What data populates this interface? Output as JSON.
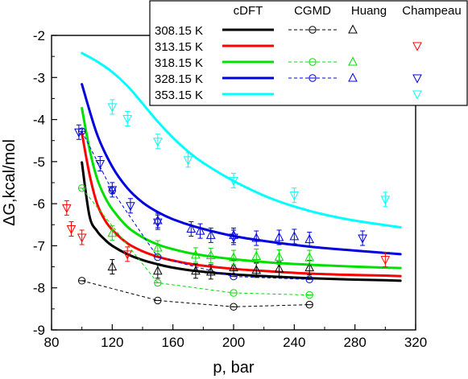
{
  "chart_data": {
    "type": "line",
    "xlabel": "p, bar",
    "ylabel": "ΔG,kcal/mol",
    "xlim": [
      80,
      320
    ],
    "ylim": [
      -9,
      -2
    ],
    "xticks": [
      80,
      120,
      160,
      200,
      240,
      280,
      320
    ],
    "yticks": [
      -9,
      -8,
      -7,
      -6,
      -5,
      -4,
      -3,
      -2
    ],
    "grid": false,
    "legend": {
      "placement": "top-right",
      "column_headers": [
        "cDFT",
        "CGMD",
        "Huang",
        "Champeau"
      ],
      "rows": [
        "308.15 K",
        "313.15 K",
        "318.15 K",
        "328.15 K",
        "353.15 K"
      ]
    },
    "temperatures": [
      {
        "label": "308.15 K",
        "color": "#000000"
      },
      {
        "label": "313.15 K",
        "color": "#ff0000"
      },
      {
        "label": "318.15 K",
        "color": "#00e000"
      },
      {
        "label": "328.15 K",
        "color": "#0000dd"
      },
      {
        "label": "353.15 K",
        "color": "#00ffff"
      }
    ],
    "cdft_series": [
      {
        "temperature": "308.15 K",
        "x": [
          100,
          105,
          110,
          115,
          120,
          130,
          140,
          150,
          160,
          175,
          200,
          225,
          250,
          275,
          300,
          310
        ],
        "y": [
          -5.02,
          -6.29,
          -6.65,
          -6.85,
          -7.0,
          -7.2,
          -7.34,
          -7.44,
          -7.52,
          -7.6,
          -7.68,
          -7.73,
          -7.77,
          -7.8,
          -7.82,
          -7.83
        ]
      },
      {
        "temperature": "313.15 K",
        "x": [
          100,
          105,
          110,
          115,
          120,
          130,
          140,
          150,
          160,
          175,
          200,
          225,
          250,
          275,
          300,
          310
        ],
        "y": [
          -4.32,
          -5.3,
          -6.0,
          -6.38,
          -6.62,
          -6.94,
          -7.13,
          -7.26,
          -7.35,
          -7.45,
          -7.55,
          -7.61,
          -7.66,
          -7.69,
          -7.71,
          -7.72
        ]
      },
      {
        "temperature": "318.15 K",
        "x": [
          100,
          105,
          110,
          115,
          120,
          130,
          140,
          150,
          160,
          175,
          200,
          225,
          250,
          275,
          300,
          310
        ],
        "y": [
          -3.73,
          -4.7,
          -5.4,
          -5.83,
          -6.13,
          -6.55,
          -6.8,
          -6.97,
          -7.08,
          -7.2,
          -7.32,
          -7.4,
          -7.45,
          -7.49,
          -7.52,
          -7.53
        ]
      },
      {
        "temperature": "328.15 K",
        "x": [
          100,
          110,
          120,
          130,
          140,
          150,
          160,
          175,
          200,
          225,
          250,
          275,
          300,
          310
        ],
        "y": [
          -3.16,
          -4.35,
          -5.12,
          -5.63,
          -5.97,
          -6.2,
          -6.37,
          -6.55,
          -6.77,
          -6.91,
          -7.02,
          -7.1,
          -7.17,
          -7.2
        ]
      },
      {
        "temperature": "353.15 K",
        "x": [
          100,
          110,
          120,
          130,
          140,
          150,
          160,
          170,
          180,
          200,
          225,
          250,
          275,
          300,
          310
        ],
        "y": [
          -2.42,
          -2.62,
          -2.87,
          -3.2,
          -3.62,
          -4.05,
          -4.43,
          -4.76,
          -5.03,
          -5.46,
          -5.88,
          -6.17,
          -6.37,
          -6.51,
          -6.56
        ]
      }
    ],
    "cgmd_series": [
      {
        "temperature": "308.15 K",
        "x": [
          100,
          150,
          200,
          250
        ],
        "y": [
          -7.83,
          -8.3,
          -8.45,
          -8.4
        ]
      },
      {
        "temperature": "318.15 K",
        "x": [
          100,
          150,
          200,
          250
        ],
        "y": [
          -5.63,
          -7.88,
          -8.12,
          -8.17
        ]
      },
      {
        "temperature": "328.15 K",
        "x": [
          100,
          120,
          150,
          200,
          250
        ],
        "y": [
          -4.28,
          -5.69,
          -7.27,
          -7.73,
          -7.8
        ]
      }
    ],
    "huang_series": [
      {
        "temperature": "308.15 K",
        "x": [
          120,
          150,
          175,
          185,
          200,
          215,
          230,
          250
        ],
        "y": [
          -7.5,
          -7.6,
          -7.6,
          -7.62,
          -7.52,
          -7.58,
          -7.55,
          -7.52
        ]
      },
      {
        "temperature": "318.15 K",
        "x": [
          120,
          150,
          175,
          185,
          200,
          215,
          230,
          250
        ],
        "y": [
          -6.7,
          -7.05,
          -7.22,
          -7.23,
          -7.28,
          -7.25,
          -7.27,
          -7.28
        ]
      },
      {
        "temperature": "328.15 K",
        "x": [
          150,
          172,
          178,
          185,
          200,
          215,
          230,
          240,
          250
        ],
        "y": [
          -6.4,
          -6.6,
          -6.65,
          -6.75,
          -6.75,
          -6.82,
          -6.8,
          -6.78,
          -6.85
        ]
      }
    ],
    "champeau_series": [
      {
        "temperature": "313.15 K",
        "x": [
          90,
          93,
          100,
          130,
          300
        ],
        "y": [
          -6.1,
          -6.6,
          -6.8,
          -7.2,
          -7.33
        ]
      },
      {
        "temperature": "328.15 K",
        "x": [
          98,
          112,
          120,
          132,
          150,
          200,
          285
        ],
        "y": [
          -4.3,
          -5.05,
          -5.67,
          -6.05,
          -6.44,
          -6.8,
          -6.82
        ]
      },
      {
        "temperature": "353.15 K",
        "x": [
          120,
          130,
          150,
          170,
          200,
          240,
          300
        ],
        "y": [
          -3.7,
          -3.98,
          -4.52,
          -4.96,
          -5.45,
          -5.8,
          -5.9
        ]
      }
    ]
  }
}
